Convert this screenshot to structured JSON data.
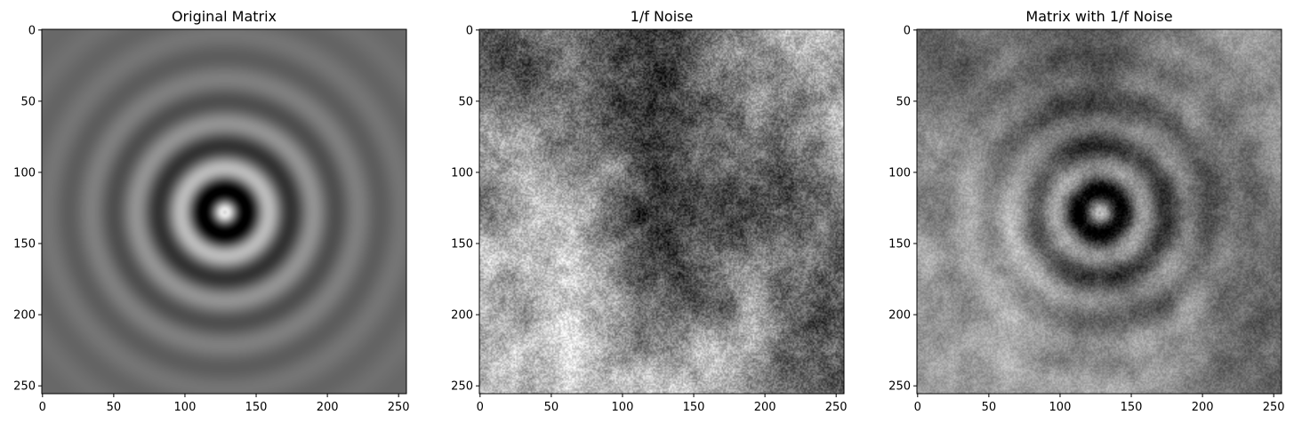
{
  "chart_data": [
    {
      "type": "heatmap",
      "title": "Original Matrix",
      "colormap": "gray",
      "shape": [
        256,
        256
      ],
      "xlim": [
        0,
        255
      ],
      "ylim": [
        255,
        0
      ],
      "xticks": [
        0,
        50,
        100,
        150,
        200,
        250
      ],
      "yticks": [
        0,
        50,
        100,
        150,
        200,
        250
      ],
      "pattern": "concentric rings centered at (128, 128): bright center, dark ring near r=20, bright ring near r=32, rings fading to uniform mid-gray"
    },
    {
      "type": "heatmap",
      "title": "1/f Noise",
      "colormap": "gray",
      "shape": [
        256,
        256
      ],
      "xlim": [
        0,
        255
      ],
      "ylim": [
        255,
        0
      ],
      "xticks": [
        0,
        50,
        100,
        150,
        200,
        250
      ],
      "yticks": [
        0,
        50,
        100,
        150,
        200,
        250
      ],
      "pattern": "random 1/f (pink) noise texture"
    },
    {
      "type": "heatmap",
      "title": "Matrix with 1/f Noise",
      "colormap": "gray",
      "shape": [
        256,
        256
      ],
      "xlim": [
        0,
        255
      ],
      "ylim": [
        255,
        0
      ],
      "xticks": [
        0,
        50,
        100,
        150,
        200,
        250
      ],
      "yticks": [
        0,
        50,
        100,
        150,
        200,
        250
      ],
      "pattern": "sum of the ring matrix and 1/f noise"
    }
  ]
}
